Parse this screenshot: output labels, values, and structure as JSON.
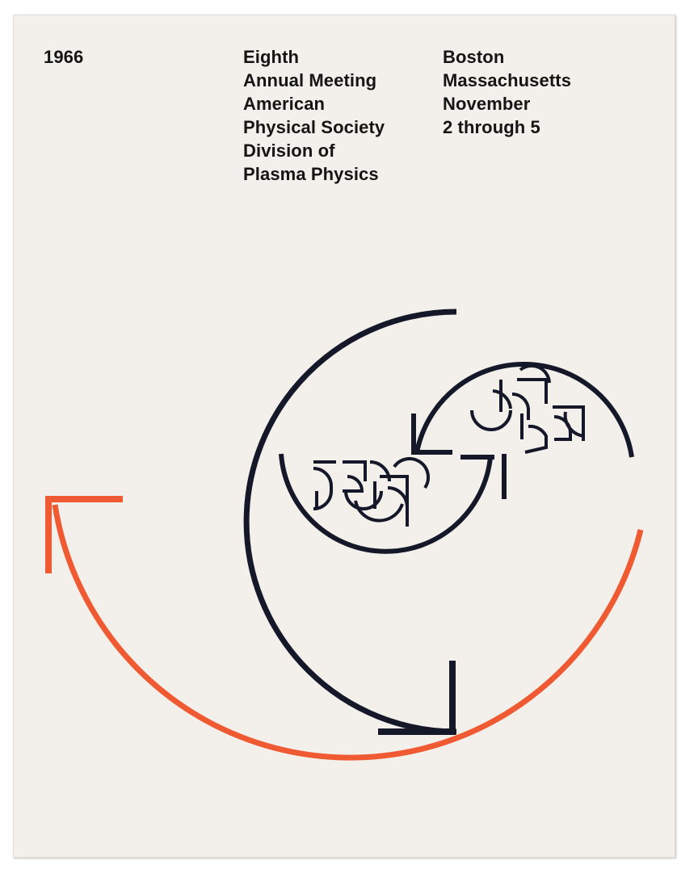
{
  "poster": {
    "year": "1966",
    "meeting_lines": [
      "Eighth",
      "Annual Meeting",
      "American",
      "Physical Society",
      "Division of",
      "Plasma Physics"
    ],
    "place_lines": [
      "Boston",
      "Massachusetts",
      "November",
      "2 through 5"
    ]
  },
  "colors": {
    "paper": "#f3efea",
    "ink": "#151829",
    "accent": "#ef5a32"
  },
  "artwork": {
    "description_icon": "spiral-arrow-graphic"
  }
}
